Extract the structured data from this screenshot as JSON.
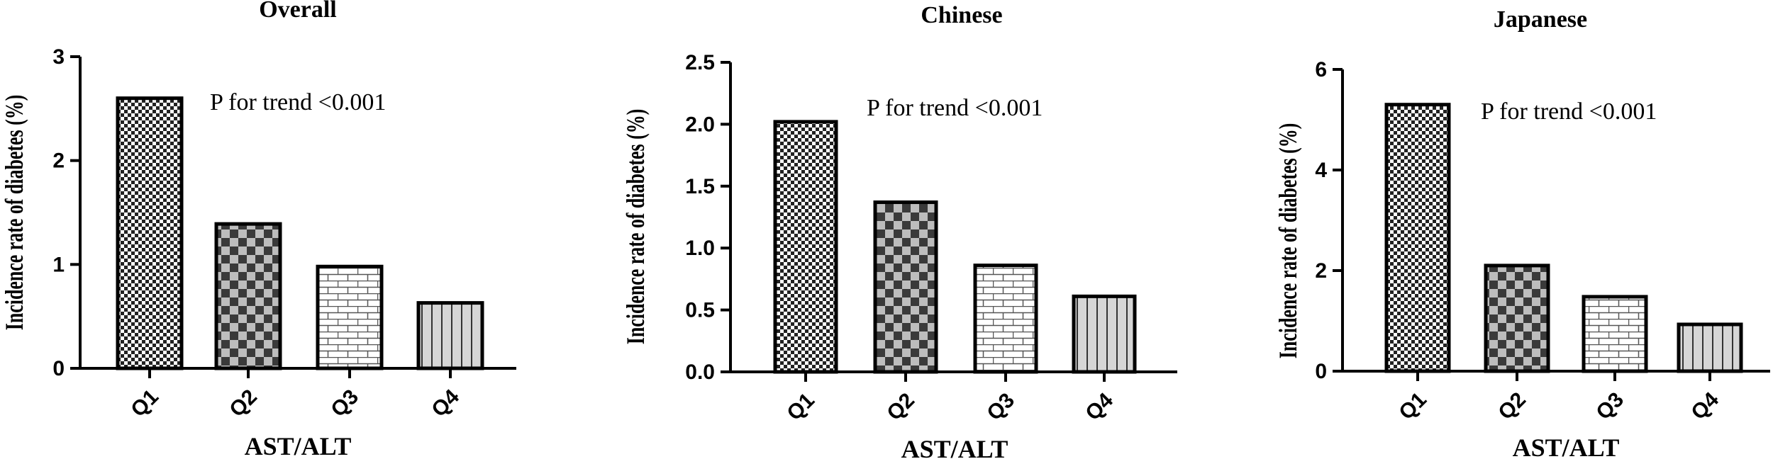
{
  "chart_data": [
    {
      "type": "bar",
      "title": "Overall",
      "xlabel": "AST/ALT",
      "ylabel": "Incidence rate of diabetes (%)",
      "categories": [
        "Q1",
        "Q2",
        "Q3",
        "Q4"
      ],
      "values": [
        2.6,
        1.39,
        0.98,
        0.63
      ],
      "ylim": [
        0,
        3
      ],
      "yticks": [
        "0",
        "1",
        "2",
        "3"
      ],
      "annotation": "P for trend <0.001",
      "grid": false
    },
    {
      "type": "bar",
      "title": "Chinese",
      "xlabel": "AST/ALT",
      "ylabel": "Incidence rate of diabetes (%)",
      "categories": [
        "Q1",
        "Q2",
        "Q3",
        "Q4"
      ],
      "values": [
        2.02,
        1.37,
        0.86,
        0.61
      ],
      "ylim": [
        0,
        2.5
      ],
      "yticks": [
        "0.0",
        "0.5",
        "1.0",
        "1.5",
        "2.0",
        "2.5"
      ],
      "annotation": "P for trend <0.001",
      "grid": false
    },
    {
      "type": "bar",
      "title": "Japanese",
      "xlabel": "AST/ALT",
      "ylabel": "Incidence rate of diabetes (%)",
      "categories": [
        "Q1",
        "Q2",
        "Q3",
        "Q4"
      ],
      "values": [
        5.3,
        2.1,
        1.48,
        0.93
      ],
      "ylim": [
        0,
        6
      ],
      "yticks": [
        "0",
        "2",
        "4",
        "6"
      ],
      "annotation": "P for trend <0.001",
      "grid": false
    }
  ],
  "patterns": [
    "fine-checker",
    "dark-checker",
    "brick",
    "vertical-stripes"
  ]
}
